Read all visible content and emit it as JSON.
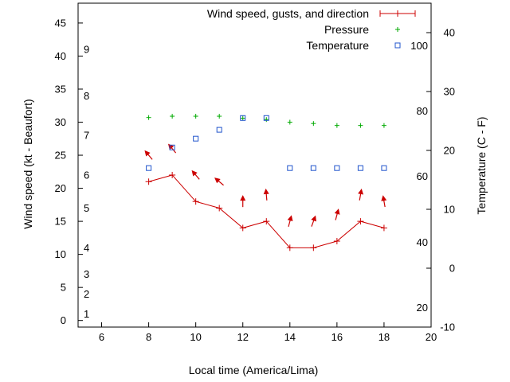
{
  "chart_data": {
    "type": "line",
    "xlabel": "Local time (America/Lima)",
    "ylabel": "Wind speed (kt - Beaufort)",
    "y2label": "Temperature (C - F)",
    "xlim": [
      5,
      20
    ],
    "ylim": [
      -1,
      48
    ],
    "y2lim": [
      -10,
      45
    ],
    "x_ticks": [
      6,
      8,
      10,
      12,
      14,
      16,
      18,
      20
    ],
    "y_ticks": [
      0,
      5,
      10,
      15,
      20,
      25,
      30,
      35,
      40,
      45
    ],
    "y2_ticks": [
      -10,
      0,
      10,
      20,
      30,
      40
    ],
    "beaufort_labels": [
      {
        "text": "1",
        "kt": 1
      },
      {
        "text": "2",
        "kt": 4
      },
      {
        "text": "3",
        "kt": 7
      },
      {
        "text": "4",
        "kt": 11
      },
      {
        "text": "5",
        "kt": 17
      },
      {
        "text": "6",
        "kt": 22
      },
      {
        "text": "7",
        "kt": 28
      },
      {
        "text": "8",
        "kt": 34
      },
      {
        "text": "9",
        "kt": 41
      }
    ],
    "fahrenheit_labels": [
      {
        "text": "20",
        "c": -6.7
      },
      {
        "text": "40",
        "c": 4.4
      },
      {
        "text": "60",
        "c": 15.6
      },
      {
        "text": "80",
        "c": 26.7
      },
      {
        "text": "100",
        "c": 37.8
      }
    ],
    "series": [
      {
        "name": "Wind speed, gusts, and direction",
        "color": "#cc0000",
        "x": [
          8,
          9,
          10,
          11,
          12,
          13,
          14,
          15,
          16,
          17,
          18
        ],
        "values": [
          21,
          22,
          18,
          17,
          14,
          15,
          11,
          11,
          12,
          15,
          14
        ],
        "direction_deg": [
          320,
          320,
          320,
          310,
          0,
          355,
          15,
          20,
          15,
          10,
          350
        ]
      },
      {
        "name": "Pressure",
        "color": "#00aa00",
        "x": [
          8,
          9,
          10,
          11,
          12,
          13,
          14,
          15,
          16,
          17,
          18
        ],
        "values": [
          30.7,
          30.9,
          30.9,
          30.9,
          30.6,
          30.4,
          30.0,
          29.8,
          29.5,
          29.5,
          29.5
        ]
      },
      {
        "name": "Temperature",
        "color": "#2255cc",
        "axis": "y2",
        "x": [
          8,
          9,
          10,
          11,
          12,
          13,
          14,
          15,
          16,
          17,
          18
        ],
        "values": [
          17,
          20.5,
          22,
          23.5,
          25.5,
          25.5,
          17,
          17,
          17,
          17,
          17
        ]
      }
    ]
  }
}
